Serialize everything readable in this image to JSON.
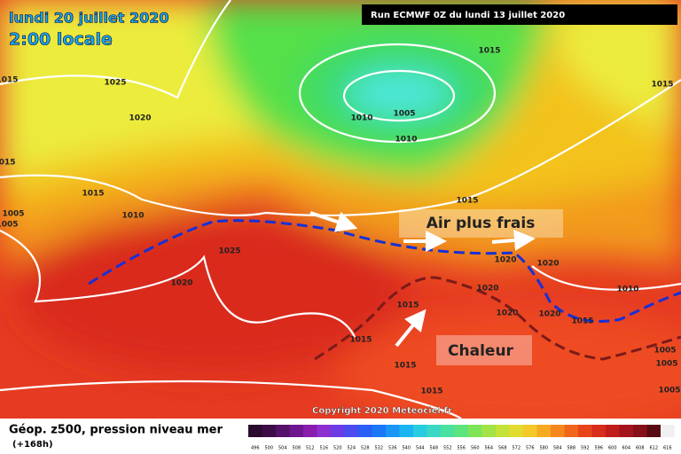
{
  "header": {
    "date": "lundi 20 juillet 2020",
    "time": "2:00 locale",
    "run": "Run ECMWF 0Z du lundi 13 juillet 2020"
  },
  "isobar_labels": [
    "1015",
    "1025",
    "1020",
    "1015",
    "1010",
    "1005",
    "1010",
    "1015",
    "1015",
    "1015",
    "1010",
    "1005",
    "1005",
    "1015",
    "1025",
    "1020",
    "1020",
    "1020",
    "1020",
    "1010",
    "1015",
    "1020",
    "1020",
    "1015",
    "1015",
    "1015",
    "1015",
    "1005",
    "1005",
    "1005"
  ],
  "annotations": {
    "cool": "Air plus frais",
    "heat": "Chaleur"
  },
  "copyright": "Copyright 2020 Meteociel.fr",
  "footer": {
    "title": "Géop. z500, pression niveau mer",
    "lead": "(+168h)"
  },
  "colorbar": {
    "labels": [
      "496",
      "500",
      "504",
      "508",
      "512",
      "516",
      "520",
      "524",
      "528",
      "532",
      "536",
      "540",
      "544",
      "548",
      "552",
      "556",
      "560",
      "564",
      "568",
      "572",
      "576",
      "580",
      "584",
      "588",
      "592",
      "596",
      "600",
      "604",
      "608",
      "612",
      "616"
    ]
  }
}
